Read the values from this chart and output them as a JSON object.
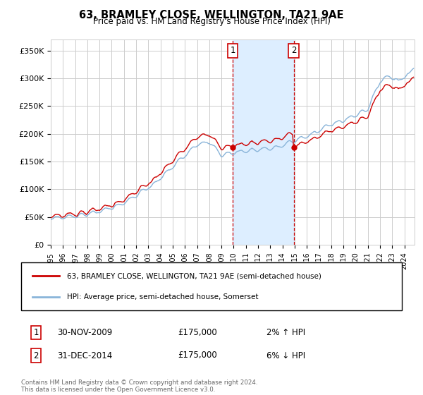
{
  "title": "63, BRAMLEY CLOSE, WELLINGTON, TA21 9AE",
  "subtitle": "Price paid vs. HM Land Registry's House Price Index (HPI)",
  "ylabel_ticks": [
    "£0",
    "£50K",
    "£100K",
    "£150K",
    "£200K",
    "£250K",
    "£300K",
    "£350K"
  ],
  "ylabel_values": [
    0,
    50000,
    100000,
    150000,
    200000,
    250000,
    300000,
    350000
  ],
  "ylim": [
    0,
    370000
  ],
  "xlim_start": 1995.0,
  "xlim_end": 2024.83,
  "legend_line1": "63, BRAMLEY CLOSE, WELLINGTON, TA21 9AE (semi-detached house)",
  "legend_line2": "HPI: Average price, semi-detached house, Somerset",
  "purchase1_date": "30-NOV-2009",
  "purchase1_price": 175000,
  "purchase1_pct": "2%",
  "purchase1_dir": "↑",
  "purchase1_label": "1",
  "purchase1_x": 2009.917,
  "purchase1_y": 175000,
  "purchase2_date": "31-DEC-2014",
  "purchase2_price": 175000,
  "purchase2_pct": "6%",
  "purchase2_dir": "↓",
  "purchase2_label": "2",
  "purchase2_x": 2014.917,
  "purchase2_y": 175000,
  "footnote": "Contains HM Land Registry data © Crown copyright and database right 2024.\nThis data is licensed under the Open Government Licence v3.0.",
  "hpi_line_color": "#89b4d9",
  "price_color": "#cc0000",
  "vline_color": "#cc0000",
  "highlight_color": "#ddeeff",
  "background_color": "#ffffff",
  "plot_bg_color": "#ffffff",
  "grid_color": "#cccccc"
}
